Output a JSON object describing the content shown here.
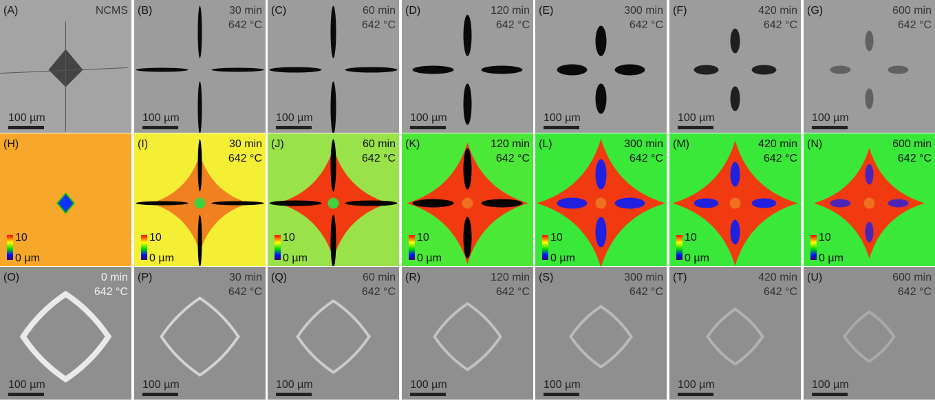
{
  "rows": [
    {
      "panels": [
        {
          "label": "(A)",
          "caption": "NCMS",
          "scale_bar": "100 µm"
        },
        {
          "label": "(B)",
          "time": "30 min",
          "temperature": "642 °C",
          "scale_bar": "100 µm"
        },
        {
          "label": "(C)",
          "time": "60 min",
          "temperature": "642 °C",
          "scale_bar": "100 µm"
        },
        {
          "label": "(D)",
          "time": "120 min",
          "temperature": "642 °C",
          "scale_bar": "100 µm"
        },
        {
          "label": "(E)",
          "time": "300 min",
          "temperature": "642 °C",
          "scale_bar": "100 µm"
        },
        {
          "label": "(F)",
          "time": "420 min",
          "temperature": "642 °C",
          "scale_bar": "100 µm"
        },
        {
          "label": "(G)",
          "time": "600 min",
          "temperature": "642 °C",
          "scale_bar": "100 µm"
        }
      ]
    },
    {
      "panels": [
        {
          "label": "(H)",
          "colorbar_max": "10",
          "colorbar_min": "0 µm"
        },
        {
          "label": "(I)",
          "time": "30 min",
          "temperature": "642 °C",
          "colorbar_max": "10",
          "colorbar_min": "0 µm"
        },
        {
          "label": "(J)",
          "time": "60 min",
          "temperature": "642 °C",
          "colorbar_max": "10",
          "colorbar_min": "0 µm"
        },
        {
          "label": "(K)",
          "time": "120 min",
          "temperature": "642 °C",
          "colorbar_max": "10",
          "colorbar_min": "0 µm"
        },
        {
          "label": "(L)",
          "time": "300 min",
          "temperature": "642 °C",
          "colorbar_max": "10",
          "colorbar_min": "0 µm"
        },
        {
          "label": "(M)",
          "time": "420 min",
          "temperature": "642 °C",
          "colorbar_max": "10",
          "colorbar_min": "0 µm"
        },
        {
          "label": "(N)",
          "time": "600 min",
          "temperature": "642 °C",
          "colorbar_max": "10",
          "colorbar_min": "0 µm"
        }
      ]
    },
    {
      "panels": [
        {
          "label": "(O)",
          "time": "0 min",
          "temperature": "642 °C",
          "scale_bar": "100 µm"
        },
        {
          "label": "(P)",
          "time": "30 min",
          "temperature": "642 °C",
          "scale_bar": "100 µm"
        },
        {
          "label": "(Q)",
          "time": "60 min",
          "temperature": "642 °C",
          "scale_bar": "100 µm"
        },
        {
          "label": "(R)",
          "time": "120 min",
          "temperature": "642 °C",
          "scale_bar": "100 µm"
        },
        {
          "label": "(S)",
          "time": "300 min",
          "temperature": "642 °C",
          "scale_bar": "100 µm"
        },
        {
          "label": "(T)",
          "time": "420 min",
          "temperature": "642 °C",
          "scale_bar": "100 µm"
        },
        {
          "label": "(U)",
          "time": "600 min",
          "temperature": "642 °C",
          "scale_bar": "100 µm"
        }
      ]
    }
  ]
}
